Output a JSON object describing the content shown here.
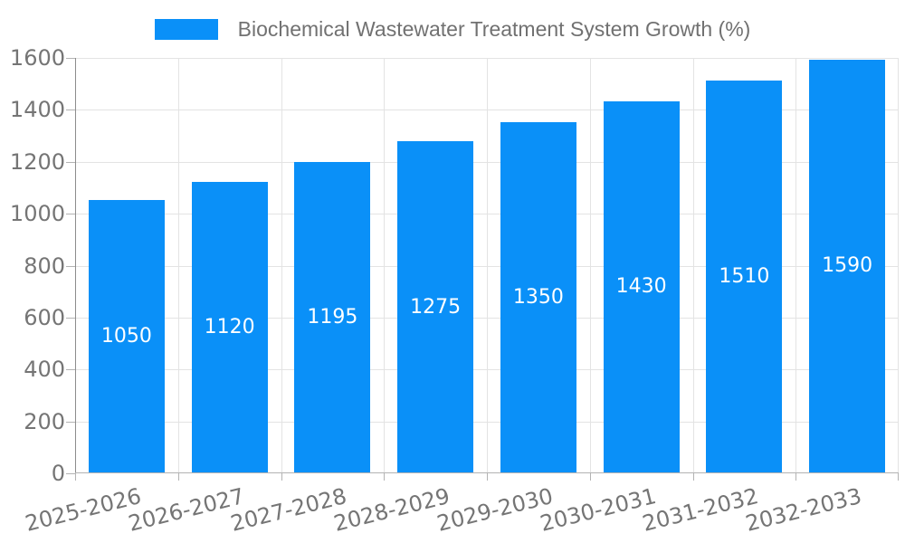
{
  "legend": {
    "label": "Biochemical Wastewater Treatment System Growth (%)"
  },
  "colors": {
    "bar": "#0a90f8",
    "grid": "#e3e3e3",
    "axis": "#8c8c8c",
    "x_axis": "#b3b3b3",
    "tick_label": "#757575",
    "legend_text": "#717171",
    "bar_label": "#ffffff",
    "background": "#ffffff"
  },
  "chart_data": {
    "type": "bar",
    "title": "Biochemical Wastewater Treatment System Growth (%)",
    "categories": [
      "2025-2026",
      "2026-2027",
      "2027-2028",
      "2028-2029",
      "2029-2030",
      "2030-2031",
      "2031-2032",
      "2032-2033"
    ],
    "values": [
      1050,
      1120,
      1195,
      1275,
      1350,
      1430,
      1510,
      1590
    ],
    "xlabel": "",
    "ylabel": "",
    "ylim": [
      0,
      1600
    ],
    "yticks": [
      0,
      200,
      400,
      600,
      800,
      1000,
      1200,
      1400,
      1600
    ],
    "grid": true,
    "legend_position": "top-center",
    "bar_label_position": "inside-middle",
    "bar_label_color": "#ffffff",
    "x_label_rotation_deg": -14
  }
}
